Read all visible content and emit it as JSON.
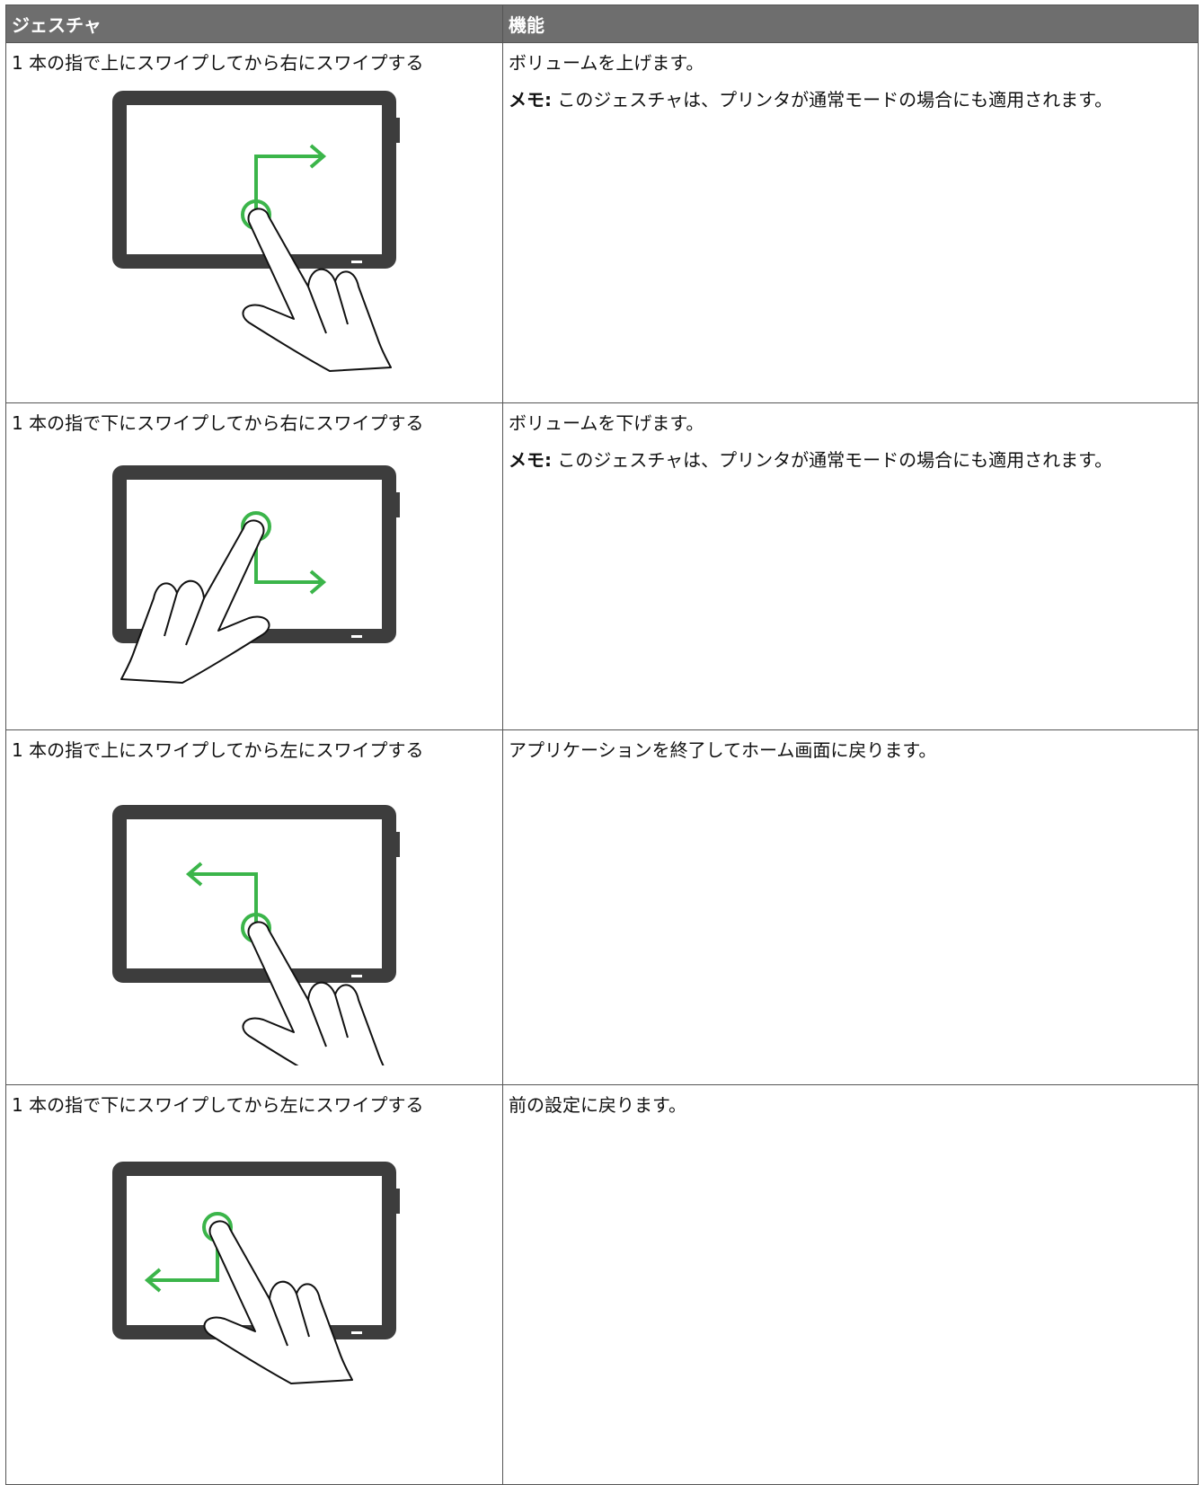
{
  "table": {
    "header": [
      "ジェスチャ",
      "機能"
    ],
    "rows": [
      {
        "gesture": "1 本の指で上にスワイプしてから右にスワイプする",
        "function": "ボリュームを上げます。",
        "note_label": "メモ:",
        "note": "このジェスチャは、プリンタが通常モードの場合にも適用されます。"
      },
      {
        "gesture": "1 本の指で下にスワイプしてから右にスワイプする",
        "function": "ボリュームを下げます。",
        "note_label": "メモ:",
        "note": "このジェスチャは、プリンタが通常モードの場合にも適用されます。"
      },
      {
        "gesture": "1 本の指で上にスワイプしてから左にスワイプする",
        "function": "アプリケーションを終了してホーム画面に戻ります。"
      },
      {
        "gesture": "1 本の指で下にスワイプしてから左にスワイプする",
        "function": "前の設定に戻ります。"
      }
    ]
  }
}
